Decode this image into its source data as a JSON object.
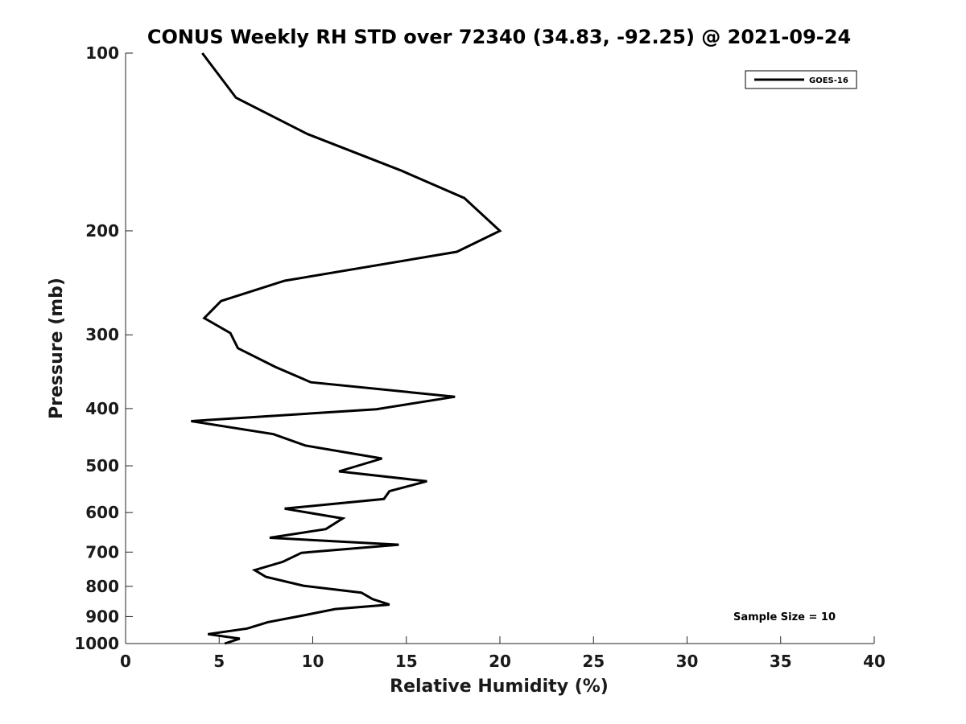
{
  "chart_data": {
    "type": "line",
    "title": "CONUS Weekly RH STD over 72340 (34.83, -92.25) @ 2021-09-24",
    "xlabel": "Relative Humidity (%)",
    "ylabel": "Pressure (mb)",
    "xlim": [
      0,
      40
    ],
    "ylim": [
      1000,
      100
    ],
    "y_scale": "log",
    "y_reversed": true,
    "x_ticks": [
      0,
      5,
      10,
      15,
      20,
      25,
      30,
      35,
      40
    ],
    "y_ticks": [
      100,
      200,
      300,
      400,
      500,
      600,
      700,
      800,
      900,
      1000
    ],
    "grid": false,
    "legend_position": "top-right",
    "annotation": "Sample Size = 10",
    "series": [
      {
        "name": "GOES-16",
        "color": "#000000",
        "x": [
          4.1,
          5.9,
          9.7,
          14.7,
          18.1,
          20.0,
          17.7,
          8.5,
          5.1,
          4.2,
          5.6,
          6.0,
          8.0,
          9.9,
          17.6,
          13.4,
          3.5,
          7.9,
          9.6,
          13.7,
          11.4,
          16.1,
          14.1,
          13.8,
          8.5,
          11.6,
          10.7,
          7.7,
          14.6,
          9.4,
          8.4,
          6.9,
          7.5,
          9.5,
          12.6,
          13.2,
          14.1,
          11.2,
          9.5,
          7.6,
          6.5,
          4.4,
          6.1,
          5.3
        ],
        "y": [
          100,
          119,
          137,
          158,
          176,
          200,
          217,
          243,
          263,
          281,
          298,
          316,
          340,
          361,
          382,
          401,
          420,
          442,
          462,
          486,
          511,
          531,
          552,
          569,
          591,
          614,
          640,
          662,
          680,
          702,
          727,
          751,
          771,
          798,
          820,
          841,
          859,
          874,
          896,
          920,
          943,
          964,
          981,
          1000
        ]
      }
    ]
  }
}
